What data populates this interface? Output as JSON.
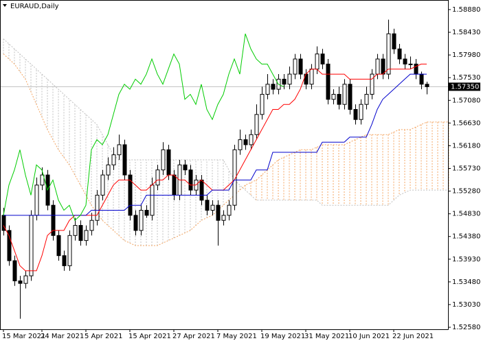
{
  "chart_data": {
    "type": "candlestick",
    "title": "EURAUD,Daily",
    "categories": [
      "15 Mar 2021",
      null,
      null,
      null,
      null,
      null,
      null,
      "24 Mar 2021",
      null,
      null,
      null,
      null,
      null,
      null,
      null,
      "5 Apr 2021",
      null,
      null,
      null,
      null,
      null,
      null,
      null,
      "15 Apr 2021",
      null,
      null,
      null,
      null,
      null,
      null,
      null,
      "27 Apr 2021",
      null,
      null,
      null,
      null,
      null,
      null,
      null,
      "7 May 2021",
      null,
      null,
      null,
      null,
      null,
      null,
      null,
      "19 May 2021",
      null,
      null,
      null,
      null,
      null,
      null,
      null,
      "31 May 2021",
      null,
      null,
      null,
      null,
      null,
      null,
      null,
      "10 Jun 2021",
      null,
      null,
      null,
      null,
      null,
      null,
      null,
      "22 Jun 2021",
      null,
      null,
      null,
      null,
      null,
      null,
      null,
      null,
      null,
      null
    ],
    "open": [
      1.548,
      1.545,
      1.539,
      1.535,
      1.5345,
      1.536,
      1.548,
      1.554,
      1.556,
      1.55,
      1.544,
      1.54,
      1.538,
      1.544,
      1.546,
      1.543,
      1.545,
      1.547,
      1.552,
      1.556,
      1.558,
      1.56,
      1.562,
      1.556,
      1.548,
      1.545,
      1.549,
      1.548,
      1.554,
      1.557,
      1.561,
      1.556,
      1.552,
      1.558,
      1.557,
      1.553,
      1.555,
      1.551,
      1.549,
      1.55,
      1.547,
      1.548,
      1.55,
      1.561,
      1.563,
      1.562,
      1.564,
      1.568,
      1.572,
      1.574,
      1.573,
      1.575,
      1.574,
      1.576,
      1.579,
      1.576,
      1.574,
      1.577,
      1.58,
      1.578,
      1.571,
      1.572,
      1.57,
      1.574,
      1.569,
      1.567,
      1.57,
      1.572,
      1.576,
      1.579,
      1.576,
      1.584,
      1.581,
      1.579,
      1.578,
      1.578,
      1.576,
      1.574,
      null,
      null,
      null,
      null
    ],
    "high": [
      1.5495,
      1.546,
      1.54,
      1.536,
      1.537,
      1.549,
      1.5555,
      1.5575,
      1.557,
      1.551,
      1.545,
      1.541,
      1.545,
      1.5475,
      1.547,
      1.546,
      1.5485,
      1.553,
      1.557,
      1.5595,
      1.5615,
      1.564,
      1.563,
      1.557,
      1.549,
      1.55,
      1.55,
      1.5555,
      1.558,
      1.5625,
      1.562,
      1.557,
      1.559,
      1.559,
      1.558,
      1.556,
      1.556,
      1.552,
      1.551,
      1.551,
      1.549,
      1.551,
      1.562,
      1.565,
      1.564,
      1.565,
      1.57,
      1.5735,
      1.576,
      1.575,
      1.576,
      1.576,
      1.5775,
      1.58,
      1.58,
      1.577,
      1.578,
      1.5815,
      1.581,
      1.579,
      1.573,
      1.5735,
      1.575,
      1.575,
      1.57,
      1.571,
      1.5735,
      1.577,
      1.58,
      1.58,
      1.5868,
      1.585,
      1.582,
      1.58,
      1.5795,
      1.579,
      1.5765,
      1.5745,
      null,
      null,
      null,
      null
    ],
    "low": [
      1.544,
      1.538,
      1.534,
      1.5275,
      1.5335,
      1.535,
      1.547,
      1.553,
      1.549,
      1.543,
      1.539,
      1.537,
      1.537,
      1.543,
      1.542,
      1.542,
      1.544,
      1.546,
      1.551,
      1.555,
      1.557,
      1.559,
      1.555,
      1.547,
      1.544,
      1.544,
      1.5475,
      1.547,
      1.553,
      1.556,
      1.555,
      1.551,
      1.551,
      1.556,
      1.552,
      1.552,
      1.55,
      1.548,
      1.548,
      1.542,
      1.546,
      1.547,
      1.549,
      1.56,
      1.561,
      1.561,
      1.563,
      1.567,
      1.571,
      1.572,
      1.572,
      1.573,
      1.573,
      1.575,
      1.575,
      1.573,
      1.573,
      1.576,
      1.577,
      1.57,
      1.57,
      1.569,
      1.569,
      1.568,
      1.566,
      1.566,
      1.569,
      1.571,
      1.575,
      1.575,
      1.575,
      1.58,
      1.578,
      1.577,
      1.577,
      1.575,
      1.573,
      1.572,
      null,
      null,
      null,
      null
    ],
    "close": [
      1.545,
      1.539,
      1.535,
      1.5345,
      1.536,
      1.548,
      1.554,
      1.556,
      1.55,
      1.544,
      1.54,
      1.538,
      1.544,
      1.546,
      1.543,
      1.545,
      1.547,
      1.552,
      1.556,
      1.558,
      1.56,
      1.562,
      1.556,
      1.548,
      1.545,
      1.549,
      1.548,
      1.554,
      1.557,
      1.561,
      1.556,
      1.552,
      1.558,
      1.557,
      1.553,
      1.555,
      1.551,
      1.549,
      1.55,
      1.547,
      1.548,
      1.55,
      1.561,
      1.563,
      1.562,
      1.564,
      1.568,
      1.572,
      1.574,
      1.573,
      1.575,
      1.574,
      1.576,
      1.579,
      1.576,
      1.574,
      1.577,
      1.58,
      1.578,
      1.571,
      1.572,
      1.57,
      1.574,
      1.569,
      1.567,
      1.57,
      1.572,
      1.576,
      1.579,
      1.576,
      1.584,
      1.581,
      1.579,
      1.578,
      1.578,
      1.576,
      1.574,
      1.5735,
      null,
      null,
      null,
      null
    ],
    "up_color": "#ffffff",
    "down_color": "#000000",
    "candle_outline": "#000000",
    "lines": [
      {
        "color": "#ff0000",
        "values": [
          1.546,
          1.544,
          1.541,
          1.538,
          1.537,
          1.537,
          1.537,
          1.54,
          1.544,
          1.545,
          1.545,
          1.545,
          1.547,
          1.548,
          1.548,
          1.548,
          1.548,
          1.548,
          1.55,
          1.552,
          1.554,
          1.555,
          1.555,
          1.555,
          1.554,
          1.553,
          1.553,
          1.554,
          1.555,
          1.555,
          1.556,
          1.556,
          1.555,
          1.555,
          1.554,
          1.554,
          1.555,
          1.554,
          1.553,
          1.553,
          1.553,
          1.554,
          1.555,
          1.557,
          1.559,
          1.561,
          1.563,
          1.565,
          1.567,
          1.569,
          1.569,
          1.57,
          1.57,
          1.571,
          1.573,
          1.576,
          1.577,
          1.577,
          1.576,
          1.576,
          1.576,
          1.576,
          1.576,
          1.575,
          1.575,
          1.575,
          1.575,
          1.575,
          1.576,
          1.576,
          1.577,
          1.577,
          1.577,
          1.577,
          1.577,
          1.5775,
          1.578,
          1.578,
          null,
          null,
          null,
          null
        ]
      },
      {
        "color": "#0000cc",
        "values": [
          1.548,
          1.548,
          1.548,
          1.548,
          1.548,
          1.548,
          1.548,
          1.548,
          1.548,
          1.548,
          1.548,
          1.548,
          1.548,
          1.548,
          1.548,
          1.548,
          1.549,
          1.549,
          1.549,
          1.549,
          1.549,
          1.549,
          1.549,
          1.55,
          1.55,
          1.55,
          1.552,
          1.552,
          1.552,
          1.552,
          1.552,
          1.552,
          1.552,
          1.552,
          1.552,
          1.552,
          1.552,
          1.552,
          1.553,
          1.553,
          1.553,
          1.553,
          1.555,
          1.555,
          1.555,
          1.555,
          1.557,
          1.557,
          1.557,
          1.5605,
          1.5605,
          1.5605,
          1.5605,
          1.5605,
          1.5605,
          1.5605,
          1.5605,
          1.5605,
          1.5625,
          1.5625,
          1.5625,
          1.5625,
          1.5625,
          1.5635,
          1.5635,
          1.5635,
          1.5635,
          1.566,
          1.569,
          1.571,
          1.572,
          1.573,
          1.574,
          1.575,
          1.576,
          1.576,
          1.576,
          1.576,
          null,
          null,
          null,
          null
        ]
      },
      {
        "color": "#00cc00",
        "values": [
          1.548,
          1.554,
          1.557,
          1.561,
          1.556,
          1.552,
          1.558,
          1.557,
          1.553,
          1.555,
          1.551,
          1.549,
          1.55,
          1.547,
          1.548,
          1.55,
          1.561,
          1.563,
          1.562,
          1.564,
          1.568,
          1.572,
          1.574,
          1.573,
          1.575,
          1.574,
          1.576,
          1.579,
          1.576,
          1.574,
          1.577,
          1.58,
          1.578,
          1.571,
          1.572,
          1.57,
          1.574,
          1.569,
          1.567,
          1.57,
          1.572,
          1.576,
          1.579,
          1.576,
          1.584,
          1.581,
          1.579,
          1.578,
          1.578,
          1.576,
          1.574,
          1.5735,
          null,
          null,
          null,
          null,
          null,
          null,
          null,
          null,
          null,
          null,
          null,
          null,
          null,
          null,
          null,
          null,
          null,
          null,
          null,
          null,
          null,
          null,
          null,
          null,
          null,
          null,
          null,
          null,
          null,
          null
        ]
      }
    ],
    "cloud": {
      "span_a": {
        "color": "#f4a460",
        "values": [
          1.58,
          1.579,
          1.578,
          1.5765,
          1.575,
          1.5725,
          1.57,
          1.5675,
          1.565,
          1.563,
          1.561,
          1.5595,
          1.558,
          1.556,
          1.554,
          1.552,
          1.55,
          1.5485,
          1.547,
          1.546,
          1.545,
          1.544,
          1.543,
          1.5425,
          1.542,
          1.542,
          1.542,
          1.542,
          1.542,
          1.5425,
          1.543,
          1.5435,
          1.544,
          1.5445,
          1.545,
          1.546,
          1.547,
          1.5475,
          1.548,
          1.549,
          1.55,
          1.551,
          1.552,
          1.553,
          1.554,
          1.5545,
          1.555,
          1.556,
          1.557,
          1.558,
          1.559,
          1.5595,
          1.56,
          1.5605,
          1.561,
          1.561,
          1.561,
          1.5615,
          1.562,
          1.562,
          1.562,
          1.562,
          1.562,
          1.5625,
          1.563,
          1.5635,
          1.564,
          1.564,
          1.564,
          1.564,
          1.564,
          1.5645,
          1.565,
          1.565,
          1.565,
          1.5655,
          1.566,
          1.5665,
          1.5665,
          1.5665,
          1.5665,
          1.5665
        ]
      },
      "span_b": {
        "color": "#c0c0c0",
        "values": [
          1.583,
          1.582,
          1.581,
          1.58,
          1.579,
          1.578,
          1.577,
          1.576,
          1.575,
          1.574,
          1.573,
          1.572,
          1.571,
          1.57,
          1.569,
          1.568,
          1.567,
          1.566,
          1.564,
          1.562,
          1.56,
          1.559,
          1.559,
          1.559,
          1.559,
          1.559,
          1.559,
          1.559,
          1.559,
          1.559,
          1.559,
          1.559,
          1.559,
          1.559,
          1.559,
          1.559,
          1.559,
          1.559,
          1.559,
          1.559,
          1.559,
          1.557,
          1.555,
          1.554,
          1.553,
          1.552,
          1.551,
          1.551,
          1.551,
          1.551,
          1.551,
          1.551,
          1.551,
          1.551,
          1.551,
          1.551,
          1.551,
          1.551,
          1.55,
          1.55,
          1.55,
          1.55,
          1.55,
          1.55,
          1.55,
          1.55,
          1.55,
          1.55,
          1.55,
          1.55,
          1.55,
          1.551,
          1.552,
          1.5525,
          1.553,
          1.553,
          1.553,
          1.553,
          1.553,
          1.553,
          1.553,
          1.553
        ]
      }
    },
    "last_price": {
      "value": 1.5735,
      "label": "1.57350"
    },
    "ylim": [
      1.5254,
      1.5907
    ],
    "yticks": [
      {
        "value": 1.5888,
        "label": "1.58880"
      },
      {
        "value": 1.5843,
        "label": "1.58430"
      },
      {
        "value": 1.5798,
        "label": "1.57980"
      },
      {
        "value": 1.5753,
        "label": "1.57530"
      },
      {
        "value": 1.5708,
        "label": "1.57080"
      },
      {
        "value": 1.5663,
        "label": "1.56630"
      },
      {
        "value": 1.5618,
        "label": "1.56180"
      },
      {
        "value": 1.5573,
        "label": "1.55730"
      },
      {
        "value": 1.5528,
        "label": "1.55280"
      },
      {
        "value": 1.5483,
        "label": "1.54830"
      },
      {
        "value": 1.5438,
        "label": "1.54380"
      },
      {
        "value": 1.5393,
        "label": "1.53930"
      },
      {
        "value": 1.5348,
        "label": "1.53480"
      },
      {
        "value": 1.5303,
        "label": "1.53030"
      },
      {
        "value": 1.5258,
        "label": "1.52580"
      }
    ],
    "grid": false
  }
}
